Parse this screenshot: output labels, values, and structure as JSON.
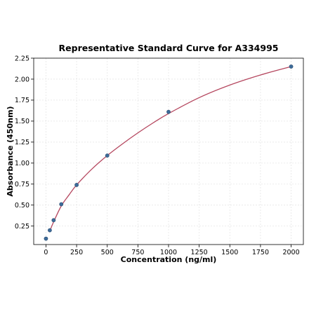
{
  "chart_data": {
    "type": "scatter",
    "title": "Representative Standard Curve for A334995",
    "xlabel": "Concentration (ng/ml)",
    "ylabel": "Absorbance (450nm)",
    "xlim": [
      -100,
      2100
    ],
    "ylim": [
      0.03,
      2.25
    ],
    "x_ticks": [
      0,
      250,
      500,
      750,
      1000,
      1250,
      1500,
      1750,
      2000
    ],
    "y_ticks": [
      0.25,
      0.5,
      0.75,
      1.0,
      1.25,
      1.5,
      1.75,
      2.0,
      2.25
    ],
    "x_tick_labels": [
      "0",
      "250",
      "500",
      "750",
      "1000",
      "1250",
      "1500",
      "1750",
      "2000"
    ],
    "y_tick_labels": [
      "0.25",
      "0.50",
      "0.75",
      "1.00",
      "1.25",
      "1.50",
      "1.75",
      "2.00",
      "2.25"
    ],
    "grid": true,
    "points": {
      "x": [
        0,
        31.25,
        62.5,
        125,
        250,
        500,
        1000,
        2000
      ],
      "y": [
        0.1,
        0.2,
        0.32,
        0.51,
        0.74,
        1.09,
        1.61,
        2.15
      ]
    },
    "fit_curve": {
      "x": [
        31.25,
        62.5,
        125,
        187.5,
        250,
        375,
        500,
        625,
        750,
        875,
        1000,
        1250,
        1500,
        1750,
        2000
      ],
      "y": [
        0.19,
        0.3,
        0.49,
        0.62,
        0.74,
        0.93,
        1.09,
        1.23,
        1.36,
        1.48,
        1.59,
        1.78,
        1.93,
        2.05,
        2.15
      ]
    },
    "colors": {
      "points": "#3d6b99",
      "curve": "#b5475f"
    }
  }
}
